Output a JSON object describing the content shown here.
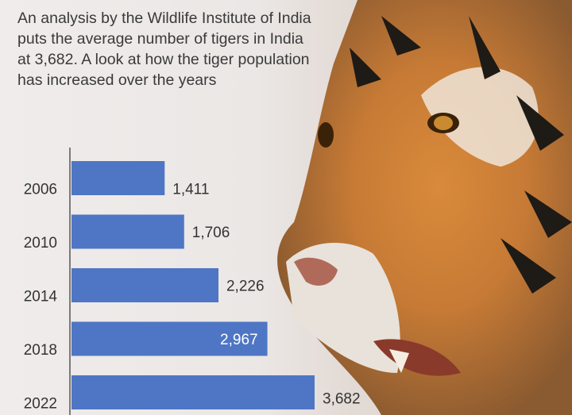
{
  "intro_text": "An analysis by the Wildlife Institute of India puts the average number of tigers in India at 3,682. A look at how the tiger population has increased over the years",
  "colors": {
    "bar": "#4f76c4",
    "text": "#333333",
    "label_inside": "#ffffff"
  },
  "image": {
    "subject": "tiger face photo"
  },
  "chart_data": {
    "type": "bar",
    "orientation": "horizontal",
    "categories": [
      "2006",
      "2010",
      "2014",
      "2018",
      "2022"
    ],
    "values": [
      1411,
      1706,
      2226,
      2967,
      3682
    ],
    "value_labels": [
      "1,411",
      "1,706",
      "2,226",
      "2,967",
      "3,682"
    ],
    "title": "",
    "xlabel": "",
    "ylabel": "",
    "xlim": [
      0,
      3682
    ],
    "grid": false,
    "legend": "none"
  }
}
